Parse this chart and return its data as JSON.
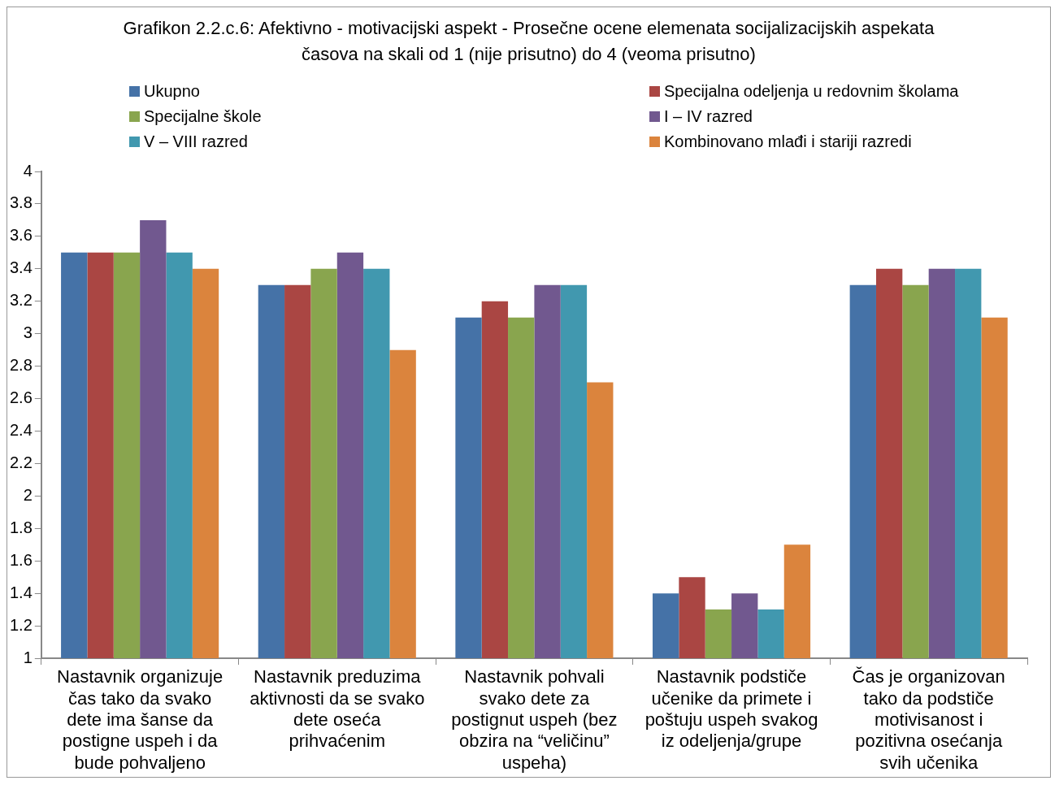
{
  "chart_data": {
    "type": "bar",
    "title": "Grafikon 2.2.c.6: Afektivno - motivacijski aspekt - Prosečne ocene elemenata socijalizacijskih aspekata časova na skali od 1 (nije prisutno) do 4 (veoma prisutno)",
    "categories": [
      "Nastavnik organizuje čas tako da svako dete ima šanse da postigne uspeh i da bude pohvaljeno",
      "Nastavnik preduzima aktivnosti da se svako dete oseća prihvaćenim",
      "Nastavnik pohvali svako dete za postignut uspeh (bez obzira na “veličinu” uspeha)",
      "Nastavnik podstiče učenike da primete i poštuju uspeh svakog iz odeljenja/grupe",
      "Čas je organizovan tako da podstiče motivisanost i pozitivna osećanja svih učenika"
    ],
    "series": [
      {
        "name": "Ukupno",
        "color": "#4572a7",
        "values": [
          3.5,
          3.3,
          3.1,
          1.4,
          3.3
        ]
      },
      {
        "name": "Specijalna odeljenja u redovnim školama",
        "color": "#aa4643",
        "values": [
          3.5,
          3.3,
          3.2,
          1.5,
          3.4
        ]
      },
      {
        "name": "Specijalne škole",
        "color": "#89a54e",
        "values": [
          3.5,
          3.4,
          3.1,
          1.3,
          3.3
        ]
      },
      {
        "name": "I – IV razred",
        "color": "#71588f",
        "values": [
          3.7,
          3.5,
          3.3,
          1.4,
          3.4
        ]
      },
      {
        "name": "V – VIII razred",
        "color": "#4198af",
        "values": [
          3.5,
          3.4,
          3.3,
          1.3,
          3.4
        ]
      },
      {
        "name": "Kombinovano mlađi i stariji razredi",
        "color": "#db843d",
        "values": [
          3.4,
          2.9,
          2.7,
          1.7,
          3.1
        ]
      }
    ],
    "ylim": [
      1,
      4
    ],
    "yticks": [
      1,
      1.2,
      1.4,
      1.6,
      1.8,
      2,
      2.2,
      2.4,
      2.6,
      2.8,
      3,
      3.2,
      3.4,
      3.6,
      3.8,
      4
    ],
    "grid": false,
    "legend": "top"
  }
}
